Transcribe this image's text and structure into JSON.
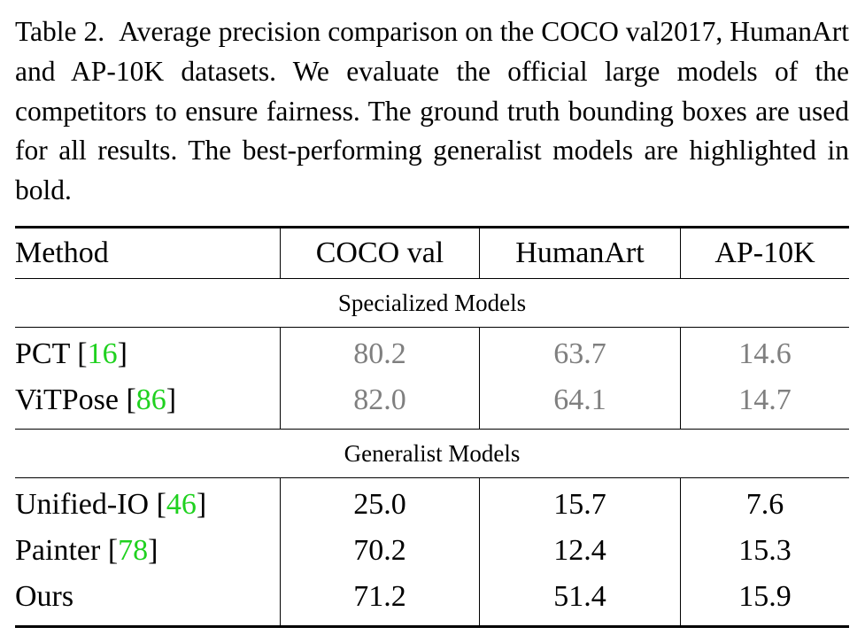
{
  "caption": {
    "label": "Table 2.",
    "text": "Average precision comparison on the COCO val2017, HumanArt and AP-10K datasets. We evaluate the official large models of the competitors to ensure fairness. The ground truth bounding boxes are used for all results. The best-performing generalist models are highlighted in bold."
  },
  "table": {
    "headers": [
      "Method",
      "COCO val",
      "HumanArt",
      "AP-10K"
    ],
    "groups": [
      {
        "title": "Specialized Models",
        "rows": [
          {
            "method": "PCT",
            "cite": "16",
            "coco": "80.2",
            "humanart": "63.7",
            "ap10k": "14.6"
          },
          {
            "method": "ViTPose",
            "cite": "86",
            "coco": "82.0",
            "humanart": "64.1",
            "ap10k": "14.7"
          }
        ]
      },
      {
        "title": "Generalist Models",
        "rows": [
          {
            "method": "Unified-IO",
            "cite": "46",
            "coco": "25.0",
            "humanart": "15.7",
            "ap10k": "7.6"
          },
          {
            "method": "Painter",
            "cite": "78",
            "coco": "70.2",
            "humanart": "12.4",
            "ap10k": "15.3"
          },
          {
            "method": "Ours",
            "cite": "",
            "coco": "71.2",
            "humanart": "51.4",
            "ap10k": "15.9"
          }
        ]
      }
    ]
  },
  "colors": {
    "citation": "#1fd11f",
    "specialized_values": "#7f7f7f",
    "text": "#000000"
  }
}
